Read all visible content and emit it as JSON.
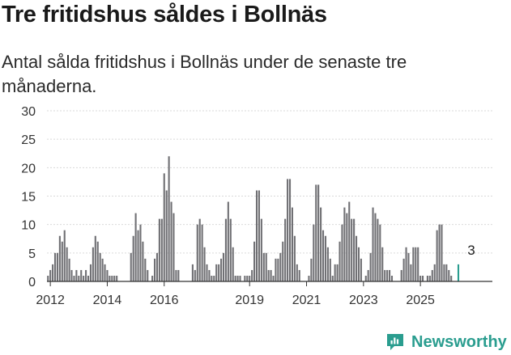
{
  "header": {
    "title": "Tre fritidshus såldes i Bollnäs",
    "subtitle": "Antal sålda fritidshus i Bollnäs under de senaste tre månaderna."
  },
  "brand": {
    "name": "Newsworthy",
    "icon": "newsworthy-logo-icon",
    "color": "#2a9d8f"
  },
  "chart_data": {
    "type": "bar",
    "title": "",
    "xlabel": "",
    "ylabel": "",
    "ylim": [
      0,
      30
    ],
    "y_ticks": [
      0,
      5,
      10,
      15,
      20,
      25,
      30
    ],
    "x_ticks": [
      "2012",
      "2014",
      "2016",
      "2019",
      "2021",
      "2023",
      "2025"
    ],
    "grid": true,
    "bar_color": "#707074",
    "highlight_color": "#2a9d8f",
    "highlight_label": "3",
    "series": [
      {
        "values": [
          0,
          0,
          0,
          0,
          0,
          0,
          0,
          0,
          0,
          0,
          0,
          1,
          2,
          3,
          5,
          5,
          8,
          7,
          9,
          6,
          4,
          2,
          1,
          2,
          1,
          2,
          1,
          2,
          1,
          3,
          6,
          8,
          7,
          5,
          4,
          3,
          2,
          1,
          1,
          1,
          1,
          0,
          0,
          0,
          0,
          0,
          5,
          8,
          12,
          9,
          10,
          7,
          4,
          2,
          0,
          1,
          4,
          5,
          11,
          11,
          19,
          16,
          22,
          14,
          12,
          2,
          2,
          0,
          0,
          0,
          0,
          0,
          3,
          2,
          10,
          11,
          10,
          6,
          3,
          2,
          1,
          1,
          3,
          3,
          4,
          5,
          11,
          14,
          11,
          6,
          1,
          1,
          1,
          0,
          1,
          1,
          1,
          2,
          7,
          16,
          16,
          11,
          5,
          5,
          2,
          2,
          1,
          4,
          4,
          5,
          7,
          11,
          18,
          18,
          13,
          8,
          3,
          2,
          0,
          0,
          0,
          1,
          4,
          10,
          17,
          17,
          13,
          9,
          8,
          6,
          4,
          1,
          3,
          3,
          7,
          10,
          13,
          12,
          14,
          11,
          11,
          8,
          6,
          4,
          0,
          1,
          2,
          5,
          13,
          12,
          11,
          10,
          6,
          2,
          2,
          2,
          1,
          0,
          0,
          0,
          2,
          4,
          6,
          5,
          3,
          6,
          6,
          6,
          1,
          1,
          0,
          1,
          1,
          2,
          3,
          9,
          10,
          10,
          3,
          3,
          2,
          1,
          0,
          0,
          3
        ]
      }
    ]
  }
}
